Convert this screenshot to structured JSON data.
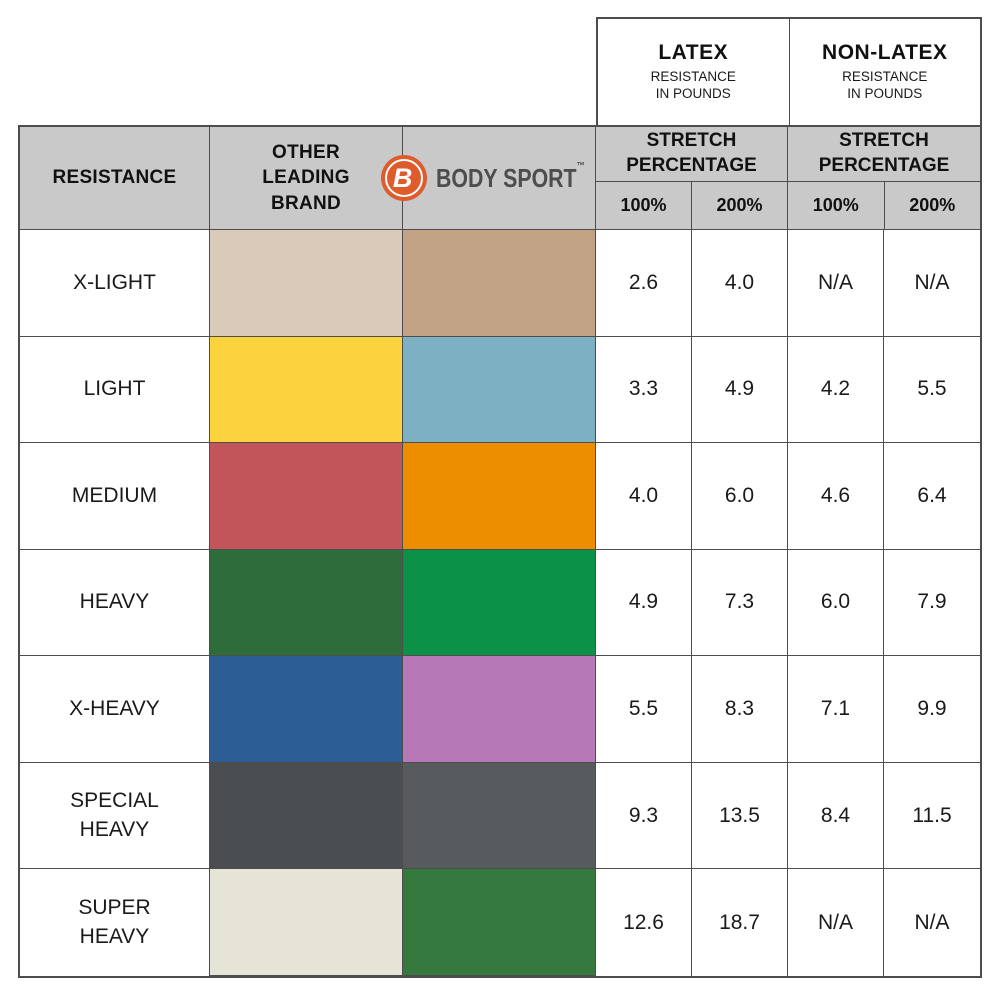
{
  "top": {
    "latex": {
      "title": "LATEX",
      "sub": "RESISTANCE\nIN POUNDS"
    },
    "nonlatex": {
      "title": "NON-LATEX",
      "sub": "RESISTANCE\nIN POUNDS"
    },
    "stretch": {
      "label": "STRETCH\nPERCENTAGE",
      "cols": [
        "100%",
        "200%"
      ]
    }
  },
  "header": {
    "resistance": "RESISTANCE",
    "other_brand": "OTHER\nLEADING\nBRAND",
    "brand_b": "B",
    "brand_name": "BODY SPORT",
    "brand_tm": "™"
  },
  "colors": {
    "header_bg": "#c9c9c9",
    "grid_line": "#4d4d4d",
    "logo_orange": "#de5b2c",
    "logo_text_gray": "#4d4d4d"
  },
  "chart_data": {
    "type": "table",
    "column_groups": [
      "LATEX RESISTANCE IN POUNDS",
      "NON-LATEX RESISTANCE IN POUNDS"
    ],
    "sub_columns": [
      "100%",
      "200%",
      "100%",
      "200%"
    ],
    "rows": [
      {
        "label": "X-LIGHT",
        "other_color": "#d9caba",
        "bodysport_color": "#c2a285",
        "values": {
          "latex_100": "2.6",
          "latex_200": "4.0",
          "nonlatex_100": "N/A",
          "nonlatex_200": "N/A"
        }
      },
      {
        "label": "LIGHT",
        "other_color": "#fad33e",
        "bodysport_color": "#7eb0c3",
        "values": {
          "latex_100": "3.3",
          "latex_200": "4.9",
          "nonlatex_100": "4.2",
          "nonlatex_200": "5.5"
        }
      },
      {
        "label": "MEDIUM",
        "other_color": "#c1555a",
        "bodysport_color": "#ed8d00",
        "values": {
          "latex_100": "4.0",
          "latex_200": "6.0",
          "nonlatex_100": "4.6",
          "nonlatex_200": "6.4"
        }
      },
      {
        "label": "HEAVY",
        "other_color": "#2f6c3c",
        "bodysport_color": "#0c9148",
        "values": {
          "latex_100": "4.9",
          "latex_200": "7.3",
          "nonlatex_100": "6.0",
          "nonlatex_200": "7.9"
        }
      },
      {
        "label": "X-HEAVY",
        "other_color": "#2c5d95",
        "bodysport_color": "#b678b6",
        "values": {
          "latex_100": "5.5",
          "latex_200": "8.3",
          "nonlatex_100": "7.1",
          "nonlatex_200": "9.9"
        }
      },
      {
        "label": "SPECIAL\nHEAVY",
        "other_color": "#4a4e50",
        "bodysport_color": "#575b5d",
        "values": {
          "latex_100": "9.3",
          "latex_200": "13.5",
          "nonlatex_100": "8.4",
          "nonlatex_200": "11.5"
        }
      },
      {
        "label": "SUPER\nHEAVY",
        "other_color": "#e6e4d7",
        "bodysport_color": "#35793e",
        "values": {
          "latex_100": "12.6",
          "latex_200": "18.7",
          "nonlatex_100": "N/A",
          "nonlatex_200": "N/A"
        }
      }
    ]
  }
}
